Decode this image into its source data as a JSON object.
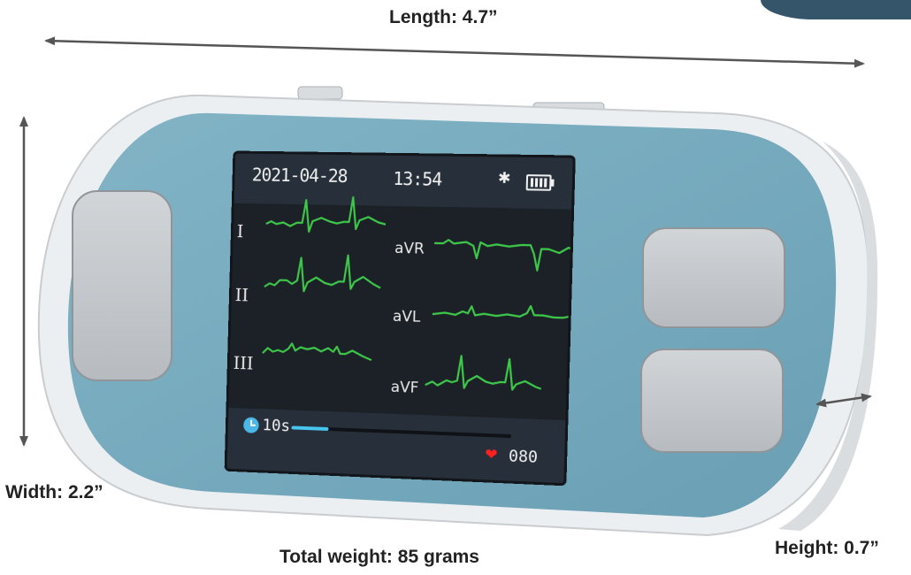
{
  "labels": {
    "length": "Length: 4.7”",
    "width": "Width: 2.2”",
    "height": "Height: 0.7”",
    "weight": "Total weight: 85 grams"
  },
  "screen": {
    "date": "2021-04-28",
    "time": "13:54",
    "leads_left": [
      "I",
      "II",
      "III"
    ],
    "leads_right": [
      "aVR",
      "aVL",
      "aVF"
    ],
    "timer": "10s",
    "timer_progress": 0.17,
    "heart_rate": "080"
  },
  "colors": {
    "device_face": "#74a9bd",
    "device_shell": "#eceff1",
    "button": "#c5c9cc",
    "waveform": "#3ec84a",
    "screen_bg": "#1c2127",
    "heart": "#ff2020",
    "progress": "#47c5ef"
  },
  "icons": [
    "bluetooth-icon",
    "battery-icon",
    "clock-icon",
    "heart-icon"
  ]
}
